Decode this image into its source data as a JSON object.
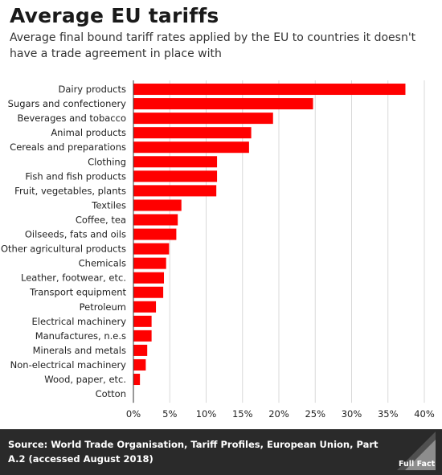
{
  "header": {
    "title": "Average EU tariffs",
    "subtitle": "Average final bound tariff rates applied by the EU to countries it doesn't have a trade agreement in place with"
  },
  "chart_data": {
    "type": "bar",
    "orientation": "horizontal",
    "title": "Average EU tariffs",
    "subtitle": "Average final bound tariff rates applied by the EU to countries it doesn't have a trade agreement in place with",
    "xlabel": "",
    "ylabel": "",
    "categories": [
      "Dairy products",
      "Sugars and confectionery",
      "Beverages and tobacco",
      "Animal products",
      "Cereals and preparations",
      "Clothing",
      "Fish and fish products",
      "Fruit, vegetables, plants",
      "Textiles",
      "Coffee, tea",
      "Oilseeds, fats and oils",
      "Other agricultural products",
      "Chemicals",
      "Leather, footwear, etc.",
      "Transport equipment",
      "Petroleum",
      "Electrical machinery",
      "Manufactures, n.e.s",
      "Minerals and metals",
      "Non-electrical machinery",
      "Wood, paper, etc.",
      "Cotton"
    ],
    "values": [
      37.4,
      24.7,
      19.2,
      16.2,
      15.9,
      11.5,
      11.5,
      11.4,
      6.6,
      6.1,
      5.9,
      4.9,
      4.5,
      4.2,
      4.1,
      3.1,
      2.5,
      2.5,
      1.9,
      1.7,
      0.9,
      0
    ],
    "xlim": [
      0,
      40
    ],
    "xticks": [
      0,
      5,
      10,
      15,
      20,
      25,
      30,
      35,
      40
    ],
    "tick_suffix": "%",
    "grid": true,
    "bar_color": "#ff0000"
  },
  "footer": {
    "source_label": "Source:",
    "source_text": "World Trade Organisation, Tariff Profiles, European Union, Part A.2 (accessed August 2018)",
    "logo_text": "Full Fact"
  }
}
